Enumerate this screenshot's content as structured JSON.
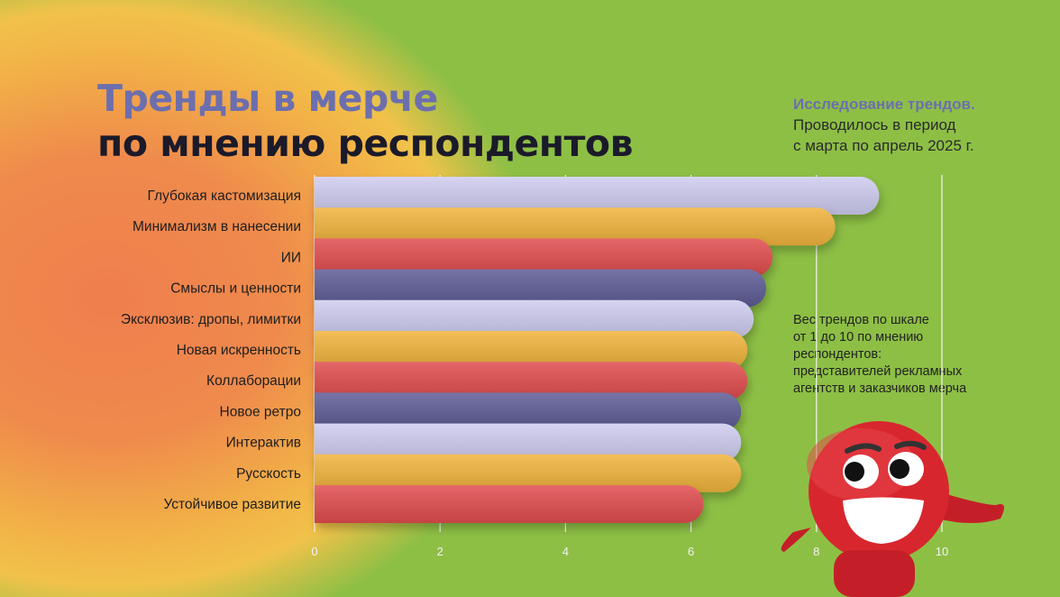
{
  "title": {
    "line1": "Тренды в мерче",
    "line2": "по мнению респондентов"
  },
  "note": {
    "heading": "Исследование трендов.",
    "line1": "Проводилось в период",
    "line2": "с марта по апрель 2025 г."
  },
  "scale_note": [
    "Вес трендов по шкале",
    "от 1 до 10 по мнению",
    "респондентов:",
    "представителей рекламных",
    "агентств и заказчиков мерча"
  ],
  "chart_data": {
    "type": "bar",
    "orientation": "horizontal",
    "categories": [
      "Глубокая кастомизация",
      "Минимализм в нанесении",
      "ИИ",
      "Смыслы и ценности",
      "Эксклюзив: дропы, лимитки",
      "Новая искренность",
      "Коллаборации",
      "Новое ретро",
      "Интерактив",
      "Русскость",
      "Устойчивое развитие"
    ],
    "values": [
      9.0,
      8.3,
      7.3,
      7.2,
      7.0,
      6.9,
      6.9,
      6.8,
      6.8,
      6.8,
      6.2
    ],
    "xlim": [
      0,
      10
    ],
    "xticks": [
      "0",
      "2",
      "4",
      "6",
      "8",
      "10"
    ],
    "grid": true,
    "bar_colors": [
      "#cfcdf0",
      "#f2b43c",
      "#e24e4f",
      "#5e5c96"
    ]
  },
  "colors": {
    "background": "#8dbf45",
    "title_accent": "#6c6fae",
    "mascot": "#d8262e"
  },
  "mascot": "red-ball-mascot"
}
